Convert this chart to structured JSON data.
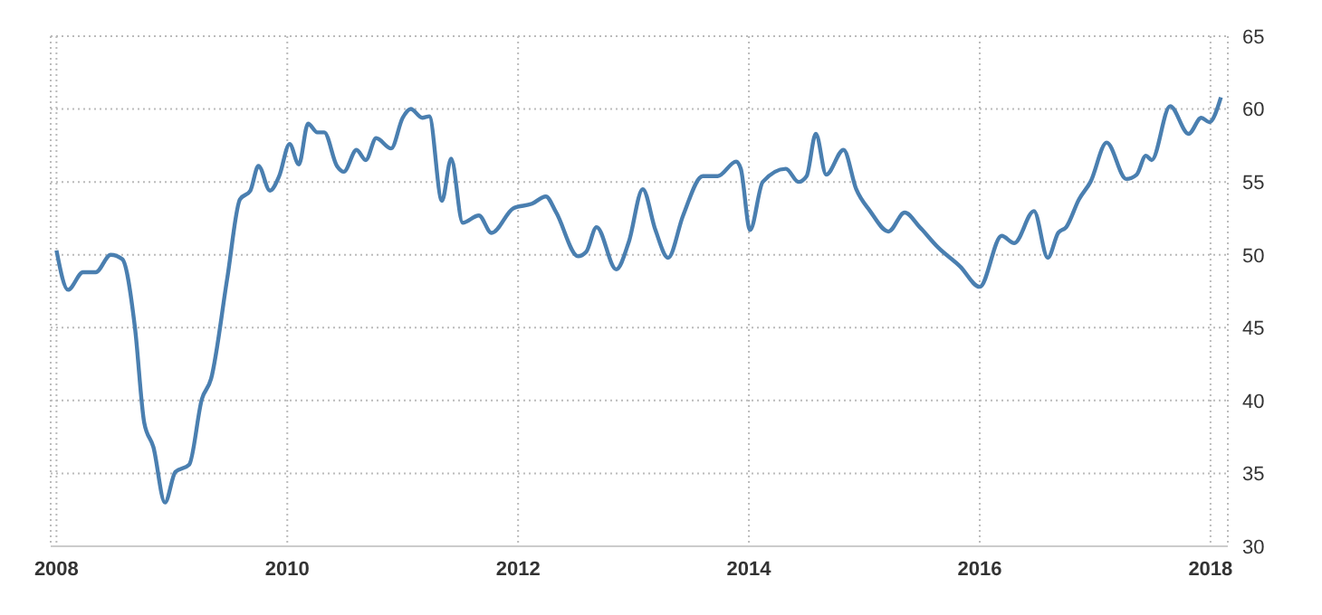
{
  "chart_data": {
    "type": "line",
    "x": [
      2008.0,
      2008.1,
      2008.23,
      2008.34,
      2008.47,
      2008.57,
      2008.68,
      2008.76,
      2008.84,
      2008.94,
      2009.03,
      2009.15,
      2009.26,
      2009.34,
      2009.48,
      2009.59,
      2009.68,
      2009.75,
      2009.85,
      2009.93,
      2010.02,
      2010.1,
      2010.18,
      2010.26,
      2010.32,
      2010.43,
      2010.49,
      2010.6,
      2010.68,
      2010.77,
      2010.9,
      2011.0,
      2011.07,
      2011.17,
      2011.23,
      2011.34,
      2011.42,
      2011.52,
      2011.66,
      2011.77,
      2011.96,
      2012.12,
      2012.24,
      2012.33,
      2012.52,
      2012.59,
      2012.68,
      2012.85,
      2012.96,
      2013.08,
      2013.19,
      2013.3,
      2013.43,
      2013.6,
      2013.73,
      2013.89,
      2013.93,
      2014.01,
      2014.12,
      2014.32,
      2014.43,
      2014.5,
      2014.58,
      2014.67,
      2014.82,
      2014.93,
      2015.05,
      2015.21,
      2015.35,
      2015.48,
      2015.64,
      2015.83,
      2016.0,
      2016.19,
      2016.3,
      2016.47,
      2016.59,
      2016.68,
      2016.75,
      2016.86,
      2016.96,
      2017.1,
      2017.27,
      2017.36,
      2017.44,
      2017.49,
      2017.65,
      2017.81,
      2017.92,
      2017.99,
      2018.09
    ],
    "series": [
      {
        "color": "#4a7fb0",
        "values": [
          50.3,
          47.6,
          48.8,
          48.8,
          50.0,
          49.7,
          45.0,
          38.5,
          36.8,
          33.0,
          35.1,
          35.6,
          40.1,
          41.5,
          48.4,
          53.8,
          54.4,
          56.1,
          54.4,
          55.4,
          57.6,
          56.2,
          59.0,
          58.4,
          58.4,
          56.1,
          55.7,
          57.2,
          56.5,
          58.0,
          57.3,
          59.4,
          60.0,
          59.4,
          59.5,
          53.7,
          56.6,
          52.2,
          52.7,
          51.5,
          53.2,
          53.5,
          54.0,
          52.9,
          49.9,
          50.2,
          51.9,
          49.0,
          50.9,
          54.5,
          51.7,
          49.8,
          52.7,
          55.4,
          55.4,
          56.4,
          55.9,
          51.7,
          55.0,
          55.9,
          55.0,
          55.4,
          58.3,
          55.5,
          57.2,
          54.5,
          53.0,
          51.6,
          52.9,
          51.9,
          50.5,
          49.2,
          47.8,
          51.3,
          50.8,
          53.0,
          49.8,
          51.5,
          51.9,
          53.8,
          55.0,
          57.7,
          55.2,
          55.5,
          56.8,
          56.5,
          60.2,
          58.3,
          59.4,
          59.1,
          60.8
        ]
      }
    ],
    "xlim": [
      2007.95,
      2018.15
    ],
    "xticks": [
      2008,
      2010,
      2012,
      2014,
      2016,
      2018
    ],
    "ylim": [
      30,
      65
    ],
    "yticks": [
      30,
      35,
      40,
      45,
      50,
      55,
      60,
      65
    ],
    "grid": true,
    "legend": false,
    "marker": "none",
    "line_style": "solid"
  }
}
